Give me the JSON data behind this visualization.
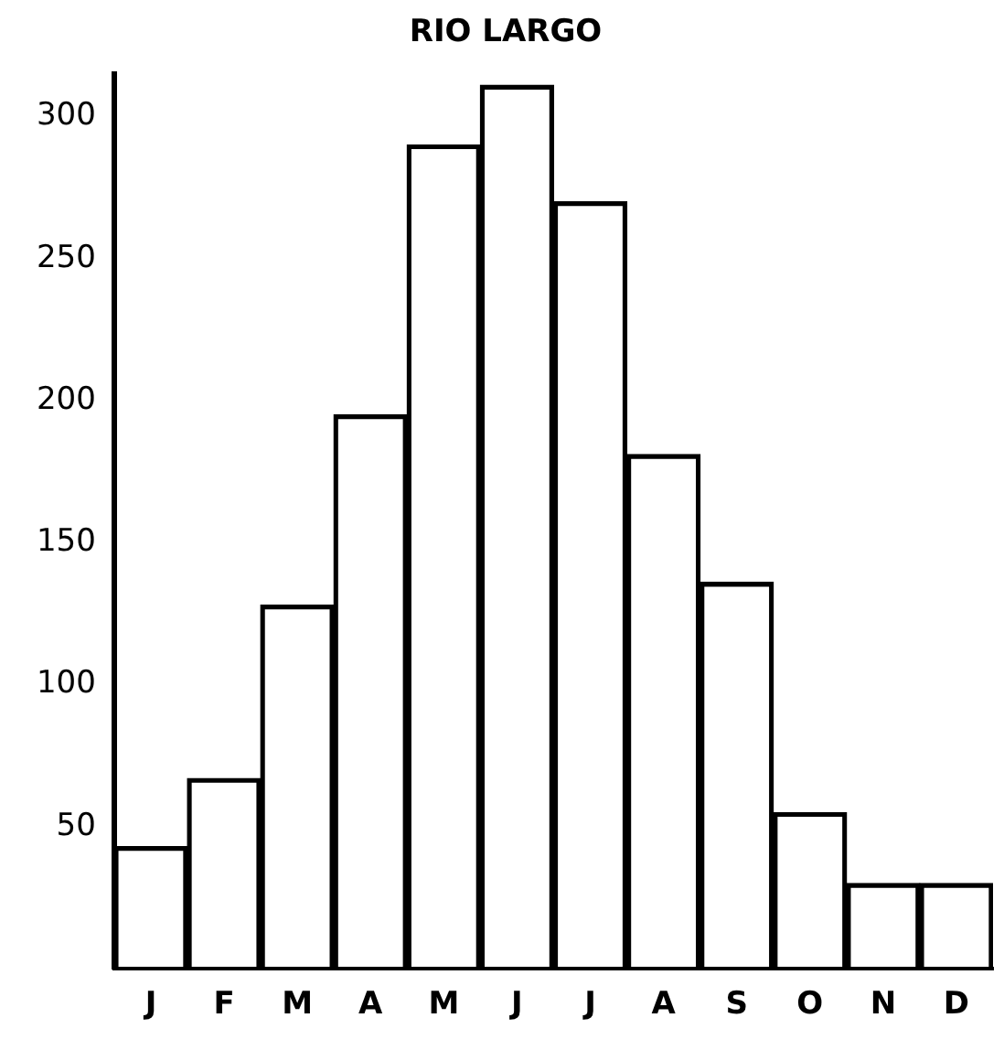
{
  "chart_data": {
    "type": "bar",
    "title": "RIO LARGO",
    "categories": [
      "J",
      "F",
      "M",
      "A",
      "M",
      "J",
      "J",
      "A",
      "S",
      "O",
      "N",
      "D"
    ],
    "values": [
      43,
      67,
      128,
      195,
      290,
      311,
      270,
      181,
      136,
      55,
      30,
      30
    ],
    "color": "#000000",
    "ylim": [
      0,
      315
    ],
    "yticks": [
      50,
      100,
      150,
      200,
      250,
      300
    ],
    "grid": false,
    "legend": false
  }
}
